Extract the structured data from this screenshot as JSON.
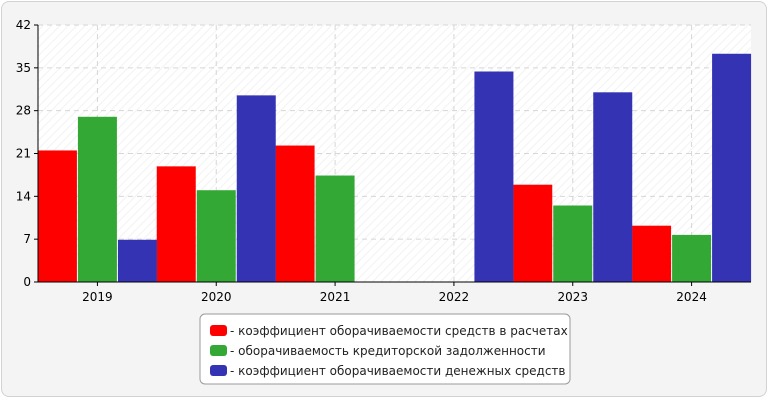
{
  "chart_data": {
    "type": "bar",
    "categories": [
      "2019",
      "2020",
      "2021",
      "2022",
      "2023",
      "2024"
    ],
    "series": [
      {
        "name": "- коэффициент оборачиваемости средств в расчетах",
        "color": "#ff0000",
        "values": [
          21.5,
          18.9,
          22.3,
          0,
          15.9,
          9.2
        ]
      },
      {
        "name": "- оборачиваемость кредиторской задолженности",
        "color": "#34a834",
        "values": [
          27.0,
          15.0,
          17.4,
          0,
          12.5,
          7.7
        ]
      },
      {
        "name": "- коэффициент оборачиваемости денежных средств",
        "color": "#3333b3",
        "values": [
          6.9,
          30.5,
          0,
          34.4,
          31.0,
          37.3
        ]
      }
    ],
    "ylim": [
      0,
      42
    ],
    "yticks": [
      0,
      7,
      14,
      21,
      28,
      35,
      42
    ],
    "grid": true,
    "legend": "bottom-center",
    "title": "",
    "xlabel": "",
    "ylabel": ""
  }
}
